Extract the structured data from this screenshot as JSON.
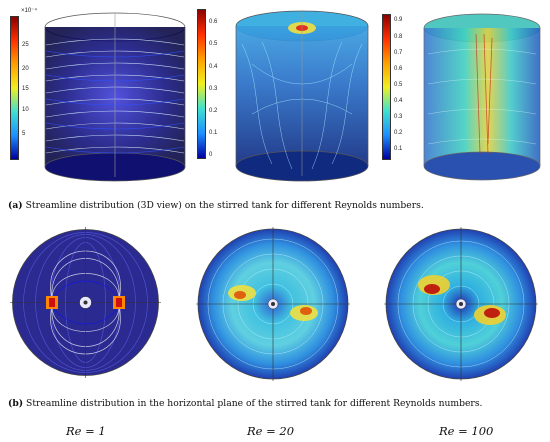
{
  "colorbars": [
    {
      "exponent": "×10⁻⁴",
      "ticks": [
        "25",
        "20",
        "15",
        "10",
        "5"
      ]
    },
    {
      "ticks": [
        "0.6",
        "0.5",
        "0.4",
        "0.3",
        "0.2",
        "0.1",
        "0"
      ]
    },
    {
      "ticks": [
        "0.9",
        "0.8",
        "0.7",
        "0.6",
        "0.5",
        "0.4",
        "0.3",
        "0.2",
        "0.1"
      ]
    }
  ],
  "caption_a": {
    "tag": "(a)",
    "text": " Streamline distribution (3D view) on the stirred tank for different Reynolds numbers."
  },
  "caption_b": {
    "tag": "(b)",
    "text": " Streamline distribution in the horizontal plane of the stirred tank for different Reynolds numbers."
  },
  "reynolds_labels": [
    "Re = 1",
    "Re = 20",
    "Re = 100"
  ],
  "colors": {
    "low": "#0a0a6e",
    "mid_blue": "#2b8fd6",
    "cyan": "#3fd0d8",
    "yellow": "#e8d23a",
    "high": "#b0101a"
  }
}
